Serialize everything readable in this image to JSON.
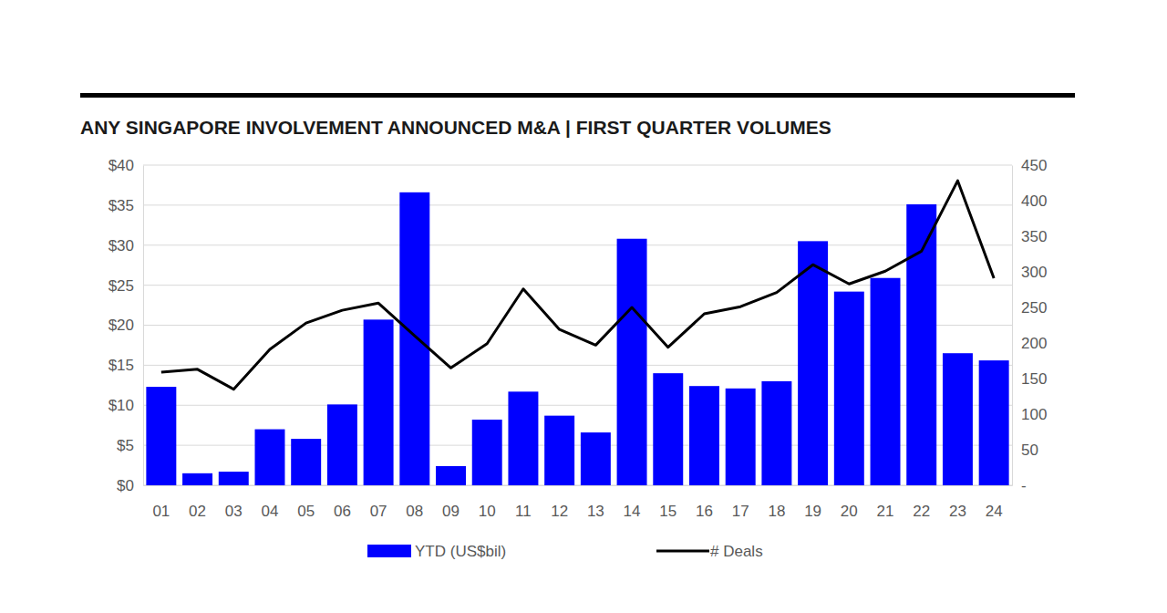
{
  "chart_data": {
    "type": "bar",
    "title": "ANY SINGAPORE INVOLVEMENT ANNOUNCED M&A |  FIRST QUARTER VOLUMES",
    "categories": [
      "01",
      "02",
      "03",
      "04",
      "05",
      "06",
      "07",
      "08",
      "09",
      "10",
      "11",
      "12",
      "13",
      "14",
      "15",
      "16",
      "17",
      "18",
      "19",
      "20",
      "21",
      "22",
      "23",
      "24"
    ],
    "series": [
      {
        "name": "YTD (US$bil)",
        "type": "bar",
        "color": "#0000ff",
        "values": [
          12.3,
          1.5,
          1.7,
          7.0,
          5.8,
          10.1,
          20.7,
          36.6,
          2.4,
          8.2,
          11.7,
          8.7,
          6.6,
          30.8,
          14.0,
          12.4,
          12.1,
          13.0,
          30.5,
          24.2,
          25.9,
          35.1,
          16.5,
          15.6
        ]
      },
      {
        "name": "# Deals",
        "type": "line",
        "color": "#000000",
        "axis": "y2",
        "values": [
          159,
          163,
          135,
          191,
          228,
          246,
          256,
          210,
          165,
          199,
          276,
          219,
          197,
          250,
          194,
          241,
          251,
          271,
          310,
          283,
          301,
          329,
          428,
          291
        ]
      }
    ],
    "ylim": [
      0,
      40
    ],
    "yticks": [
      {
        "value": 0,
        "label": "$0"
      },
      {
        "value": 5,
        "label": "$5"
      },
      {
        "value": 10,
        "label": "$10"
      },
      {
        "value": 15,
        "label": "$15"
      },
      {
        "value": 20,
        "label": "$20"
      },
      {
        "value": 25,
        "label": "$25"
      },
      {
        "value": 30,
        "label": "$30"
      },
      {
        "value": 35,
        "label": "$35"
      },
      {
        "value": 40,
        "label": "$40"
      }
    ],
    "y2lim": [
      0,
      450
    ],
    "y2ticks": [
      {
        "value": 0,
        "label": "-"
      },
      50,
      100,
      150,
      200,
      250,
      300,
      350,
      400,
      450
    ],
    "grid": true,
    "legend": "bottom"
  }
}
